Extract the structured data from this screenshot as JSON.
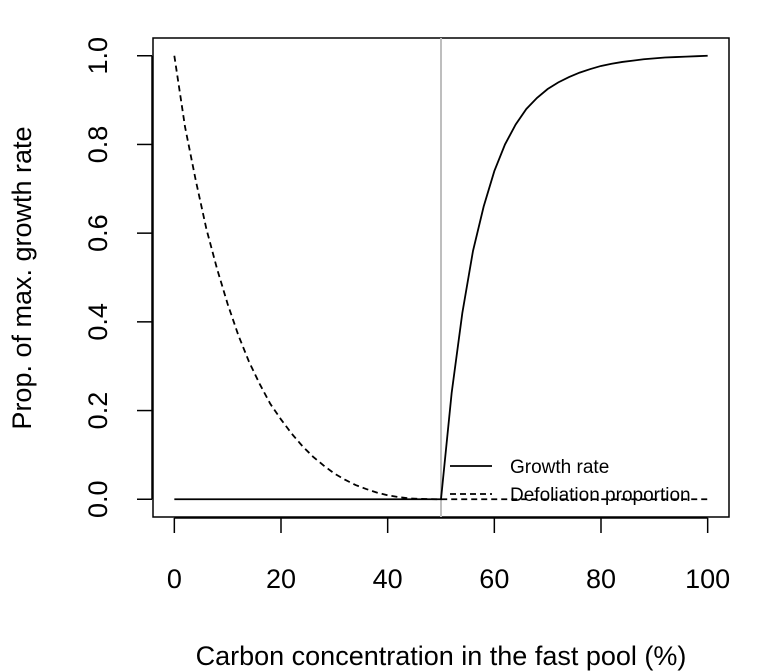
{
  "chart_data": {
    "type": "line",
    "title": "",
    "xlabel": "Carbon concentration in the fast pool (%)",
    "ylabel": "Prop. of max. growth rate",
    "xlim": [
      -4,
      104
    ],
    "ylim": [
      -0.04,
      1.04
    ],
    "xticks": [
      0,
      20,
      40,
      60,
      80,
      100
    ],
    "yticks": [
      0.0,
      0.2,
      0.4,
      0.6,
      0.8,
      1.0
    ],
    "xtick_labels": [
      "0",
      "20",
      "40",
      "60",
      "80",
      "100"
    ],
    "ytick_labels": [
      "0.0",
      "0.2",
      "0.4",
      "0.6",
      "0.8",
      "1.0"
    ],
    "grid": false,
    "legend_position": "bottom-right",
    "reference_line": {
      "x": 50,
      "color": "#bebebe"
    },
    "series": [
      {
        "name": "Growth rate",
        "style": "solid",
        "color": "#000000",
        "x": [
          0,
          10,
          20,
          30,
          40,
          49.9,
          50,
          52,
          54,
          56,
          58,
          60,
          62,
          64,
          66,
          68,
          70,
          72,
          74,
          76,
          78,
          80,
          82,
          84,
          86,
          88,
          90,
          92,
          94,
          96,
          98,
          100
        ],
        "y": [
          0,
          0,
          0,
          0,
          0,
          0,
          0,
          0.24,
          0.42,
          0.56,
          0.66,
          0.74,
          0.8,
          0.845,
          0.88,
          0.905,
          0.925,
          0.94,
          0.952,
          0.962,
          0.97,
          0.977,
          0.982,
          0.986,
          0.989,
          0.992,
          0.994,
          0.996,
          0.997,
          0.998,
          0.999,
          1.0
        ]
      },
      {
        "name": "Defoliation proportion",
        "style": "dashed",
        "color": "#000000",
        "x": [
          0,
          1,
          2,
          4,
          6,
          8,
          10,
          12,
          14,
          16,
          18,
          20,
          22,
          24,
          26,
          28,
          30,
          32,
          34,
          36,
          38,
          40,
          42,
          44,
          46,
          48,
          50,
          55,
          60,
          65,
          70,
          75,
          80,
          85,
          90,
          95,
          100
        ],
        "y": [
          1.0,
          0.92,
          0.84,
          0.72,
          0.61,
          0.52,
          0.44,
          0.37,
          0.31,
          0.26,
          0.215,
          0.18,
          0.148,
          0.12,
          0.096,
          0.076,
          0.058,
          0.044,
          0.032,
          0.023,
          0.015,
          0.009,
          0.005,
          0.002,
          0.001,
          0.0003,
          0,
          0,
          0,
          0,
          0,
          0,
          0,
          0,
          0,
          0,
          0
        ]
      }
    ]
  }
}
